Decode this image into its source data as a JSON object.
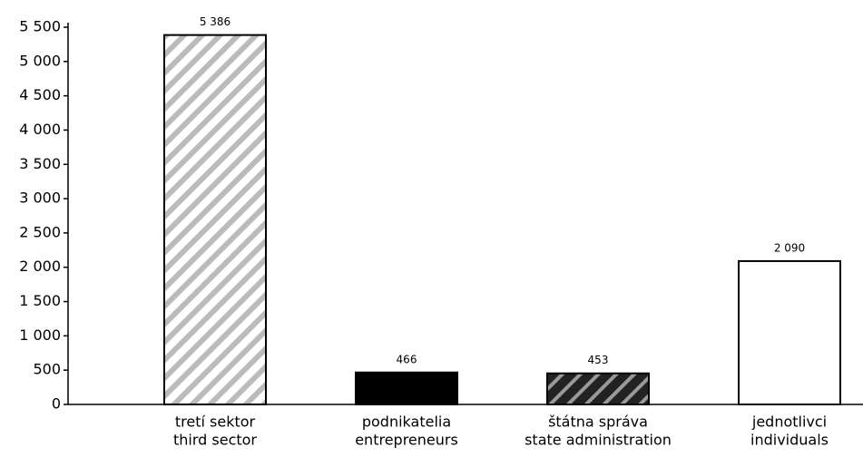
{
  "chart_data": {
    "type": "bar",
    "categories": [
      [
        "tretí sektor",
        "third sector"
      ],
      [
        "podnikatelia",
        "entrepreneurs"
      ],
      [
        "štátna správa",
        "state administration"
      ],
      [
        "jednotlivci",
        "individuals"
      ]
    ],
    "values": [
      5386,
      466,
      453,
      2090
    ],
    "value_labels": [
      "5 386",
      "466",
      "453",
      "2 090"
    ],
    "colors": [
      "#ffffff",
      "#000000",
      "#222222",
      "#ffffff"
    ],
    "hatch": [
      true,
      false,
      true,
      false
    ],
    "ylim": [
      0,
      5500
    ],
    "yticks": [
      0,
      500,
      {
        "value": 1000,
        "label": "1 000"
      },
      {
        "value": 1500,
        "label": "1 500"
      },
      {
        "value": 2000,
        "label": "2 000"
      },
      {
        "value": 2500,
        "label": "2 500"
      },
      {
        "value": 3000,
        "label": "3 000"
      },
      {
        "value": 3500,
        "label": "3 500"
      },
      {
        "value": 4000,
        "label": "4 000"
      },
      {
        "value": 4500,
        "label": "4 500"
      },
      {
        "value": 5000,
        "label": "5 000"
      },
      {
        "value": 5500,
        "label": "5 500"
      }
    ],
    "grid": false
  }
}
